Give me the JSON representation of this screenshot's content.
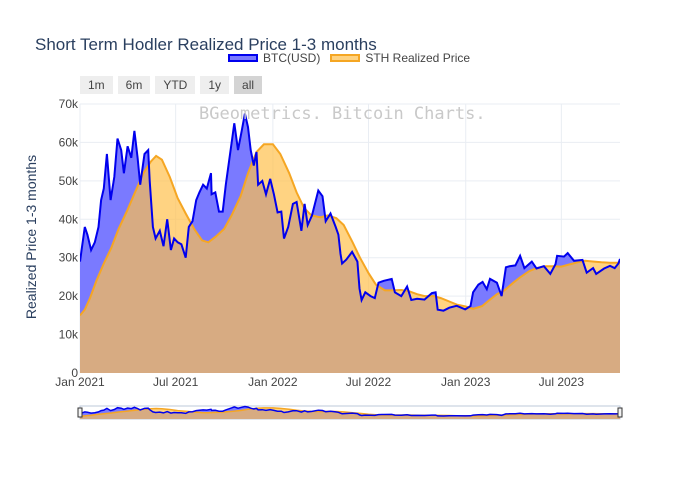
{
  "title": "Short Term Hodler Realized Price 1-3 months",
  "watermark": "BGeometrics. Bitcoin Charts.",
  "legend": [
    {
      "label": "BTC(USD)",
      "color": "#0000ee",
      "fill": "#7a7aff"
    },
    {
      "label": "STH Realized Price",
      "color": "#f5a623",
      "fill": "#ffd27f"
    }
  ],
  "range_buttons": [
    {
      "label": "1m",
      "active": false
    },
    {
      "label": "6m",
      "active": false
    },
    {
      "label": "YTD",
      "active": false
    },
    {
      "label": "1y",
      "active": false
    },
    {
      "label": "all",
      "active": true
    }
  ],
  "chart_data": {
    "type": "area",
    "title": "Short Term Hodler Realized Price 1-3 months",
    "ylabel": "Realized Price 1-3 months",
    "xlabel": "",
    "x_range": [
      "2021-01-01",
      "2023-10-20"
    ],
    "ylim": [
      0,
      70000
    ],
    "y_ticks": [
      0,
      10000,
      20000,
      30000,
      40000,
      50000,
      60000,
      70000
    ],
    "y_tick_labels": [
      "0",
      "10k",
      "20k",
      "30k",
      "40k",
      "50k",
      "60k",
      "70k"
    ],
    "x_ticks": [
      "2021-01-01",
      "2021-07-01",
      "2022-01-01",
      "2022-07-01",
      "2023-01-01",
      "2023-07-01"
    ],
    "x_tick_labels": [
      "Jan 2021",
      "Jul 2021",
      "Jan 2022",
      "Jul 2022",
      "Jan 2023",
      "Jul 2023"
    ],
    "grid": true,
    "legend_position": "top-center",
    "range_slider": true,
    "series": [
      {
        "name": "BTC(USD)",
        "color": "#0000ee",
        "points": [
          [
            "2021-01-01",
            29000
          ],
          [
            "2021-01-05",
            33000
          ],
          [
            "2021-01-10",
            38000
          ],
          [
            "2021-01-15",
            36000
          ],
          [
            "2021-01-22",
            32000
          ],
          [
            "2021-01-29",
            34000
          ],
          [
            "2021-02-05",
            38000
          ],
          [
            "2021-02-10",
            45000
          ],
          [
            "2021-02-15",
            48000
          ],
          [
            "2021-02-21",
            57000
          ],
          [
            "2021-02-28",
            45000
          ],
          [
            "2021-03-07",
            51000
          ],
          [
            "2021-03-13",
            61000
          ],
          [
            "2021-03-20",
            58000
          ],
          [
            "2021-03-25",
            52000
          ],
          [
            "2021-04-01",
            59000
          ],
          [
            "2021-04-08",
            56000
          ],
          [
            "2021-04-14",
            63000
          ],
          [
            "2021-04-20",
            56000
          ],
          [
            "2021-04-25",
            49000
          ],
          [
            "2021-05-03",
            57000
          ],
          [
            "2021-05-10",
            58000
          ],
          [
            "2021-05-13",
            50000
          ],
          [
            "2021-05-19",
            38000
          ],
          [
            "2021-05-24",
            35000
          ],
          [
            "2021-06-01",
            37000
          ],
          [
            "2021-06-08",
            33000
          ],
          [
            "2021-06-15",
            40000
          ],
          [
            "2021-06-22",
            32000
          ],
          [
            "2021-06-28",
            35000
          ],
          [
            "2021-07-05",
            34000
          ],
          [
            "2021-07-12",
            33500
          ],
          [
            "2021-07-20",
            30000
          ],
          [
            "2021-07-26",
            38000
          ],
          [
            "2021-08-02",
            39500
          ],
          [
            "2021-08-09",
            45000
          ],
          [
            "2021-08-15",
            47000
          ],
          [
            "2021-08-22",
            49000
          ],
          [
            "2021-08-29",
            48000
          ],
          [
            "2021-09-06",
            52000
          ],
          [
            "2021-09-07",
            46500
          ],
          [
            "2021-09-14",
            47000
          ],
          [
            "2021-09-21",
            42000
          ],
          [
            "2021-09-28",
            42000
          ],
          [
            "2021-10-04",
            49000
          ],
          [
            "2021-10-10",
            55000
          ],
          [
            "2021-10-16",
            61000
          ],
          [
            "2021-10-20",
            65000
          ],
          [
            "2021-10-27",
            58000
          ],
          [
            "2021-11-03",
            63000
          ],
          [
            "2021-11-09",
            67500
          ],
          [
            "2021-11-15",
            64000
          ],
          [
            "2021-11-20",
            58000
          ],
          [
            "2021-11-26",
            54000
          ],
          [
            "2021-12-01",
            57500
          ],
          [
            "2021-12-04",
            49000
          ],
          [
            "2021-12-12",
            50000
          ],
          [
            "2021-12-19",
            46500
          ],
          [
            "2021-12-27",
            50500
          ],
          [
            "2022-01-03",
            46500
          ],
          [
            "2022-01-10",
            41800
          ],
          [
            "2022-01-17",
            42000
          ],
          [
            "2022-01-22",
            35000
          ],
          [
            "2022-01-30",
            38000
          ],
          [
            "2022-02-08",
            44000
          ],
          [
            "2022-02-15",
            44500
          ],
          [
            "2022-02-24",
            37000
          ],
          [
            "2022-03-02",
            44000
          ],
          [
            "2022-03-08",
            38500
          ],
          [
            "2022-03-16",
            41000
          ],
          [
            "2022-03-28",
            47500
          ],
          [
            "2022-04-05",
            46000
          ],
          [
            "2022-04-11",
            39500
          ],
          [
            "2022-04-20",
            41500
          ],
          [
            "2022-04-30",
            38000
          ],
          [
            "2022-05-05",
            36000
          ],
          [
            "2022-05-09",
            31000
          ],
          [
            "2022-05-12",
            28500
          ],
          [
            "2022-05-20",
            29500
          ],
          [
            "2022-05-31",
            31500
          ],
          [
            "2022-06-10",
            29000
          ],
          [
            "2022-06-14",
            22000
          ],
          [
            "2022-06-18",
            19000
          ],
          [
            "2022-06-25",
            21000
          ],
          [
            "2022-07-05",
            20000
          ],
          [
            "2022-07-13",
            19500
          ],
          [
            "2022-07-20",
            23500
          ],
          [
            "2022-07-30",
            24000
          ],
          [
            "2022-08-14",
            24500
          ],
          [
            "2022-08-20",
            21000
          ],
          [
            "2022-09-01",
            20000
          ],
          [
            "2022-09-12",
            22500
          ],
          [
            "2022-09-20",
            19000
          ],
          [
            "2022-10-01",
            19300
          ],
          [
            "2022-10-15",
            19100
          ],
          [
            "2022-10-29",
            20800
          ],
          [
            "2022-11-05",
            21000
          ],
          [
            "2022-11-09",
            16500
          ],
          [
            "2022-11-20",
            16200
          ],
          [
            "2022-12-01",
            17000
          ],
          [
            "2022-12-15",
            17500
          ],
          [
            "2022-12-31",
            16550
          ],
          [
            "2023-01-10",
            17400
          ],
          [
            "2023-01-15",
            21000
          ],
          [
            "2023-01-25",
            23000
          ],
          [
            "2023-02-02",
            23700
          ],
          [
            "2023-02-10",
            21800
          ],
          [
            "2023-02-16",
            24500
          ],
          [
            "2023-03-01",
            23500
          ],
          [
            "2023-03-10",
            20000
          ],
          [
            "2023-03-18",
            27500
          ],
          [
            "2023-03-25",
            27800
          ],
          [
            "2023-04-05",
            28000
          ],
          [
            "2023-04-14",
            30500
          ],
          [
            "2023-04-22",
            27300
          ],
          [
            "2023-05-06",
            29000
          ],
          [
            "2023-05-15",
            27200
          ],
          [
            "2023-05-29",
            27800
          ],
          [
            "2023-06-10",
            25800
          ],
          [
            "2023-06-20",
            28300
          ],
          [
            "2023-06-23",
            30500
          ],
          [
            "2023-07-06",
            30300
          ],
          [
            "2023-07-13",
            31200
          ],
          [
            "2023-07-25",
            29200
          ],
          [
            "2023-08-10",
            29400
          ],
          [
            "2023-08-18",
            26100
          ],
          [
            "2023-08-30",
            27300
          ],
          [
            "2023-09-05",
            25800
          ],
          [
            "2023-09-20",
            27200
          ],
          [
            "2023-10-01",
            27900
          ],
          [
            "2023-10-10",
            27300
          ],
          [
            "2023-10-17",
            28500
          ],
          [
            "2023-10-20",
            29700
          ]
        ]
      },
      {
        "name": "STH Realized Price",
        "color": "#f5a623",
        "points": [
          [
            "2021-01-01",
            15000
          ],
          [
            "2021-01-10",
            16500
          ],
          [
            "2021-01-20",
            19500
          ],
          [
            "2021-02-01",
            24000
          ],
          [
            "2021-02-15",
            28500
          ],
          [
            "2021-03-01",
            32500
          ],
          [
            "2021-03-15",
            37500
          ],
          [
            "2021-04-01",
            42500
          ],
          [
            "2021-04-15",
            47000
          ],
          [
            "2021-05-01",
            52000
          ],
          [
            "2021-05-15",
            55000
          ],
          [
            "2021-05-25",
            56500
          ],
          [
            "2021-06-05",
            55500
          ],
          [
            "2021-06-20",
            51000
          ],
          [
            "2021-07-05",
            45500
          ],
          [
            "2021-07-20",
            41500
          ],
          [
            "2021-08-05",
            37500
          ],
          [
            "2021-08-20",
            34500
          ],
          [
            "2021-09-01",
            34000
          ],
          [
            "2021-09-15",
            35500
          ],
          [
            "2021-10-01",
            37500
          ],
          [
            "2021-10-15",
            41000
          ],
          [
            "2021-11-01",
            46000
          ],
          [
            "2021-11-15",
            52000
          ],
          [
            "2021-12-01",
            57500
          ],
          [
            "2021-12-15",
            59500
          ],
          [
            "2022-01-01",
            59500
          ],
          [
            "2022-01-15",
            57000
          ],
          [
            "2022-02-01",
            52000
          ],
          [
            "2022-02-15",
            47000
          ],
          [
            "2022-03-01",
            43000
          ],
          [
            "2022-03-15",
            41000
          ],
          [
            "2022-04-01",
            40500
          ],
          [
            "2022-04-15",
            41000
          ],
          [
            "2022-05-01",
            40300
          ],
          [
            "2022-05-15",
            38500
          ],
          [
            "2022-06-01",
            34000
          ],
          [
            "2022-06-15",
            30000
          ],
          [
            "2022-07-01",
            26000
          ],
          [
            "2022-07-15",
            23000
          ],
          [
            "2022-08-01",
            21500
          ],
          [
            "2022-08-15",
            21500
          ],
          [
            "2022-09-01",
            21600
          ],
          [
            "2022-09-15",
            21300
          ],
          [
            "2022-10-01",
            20500
          ],
          [
            "2022-10-15",
            20000
          ],
          [
            "2022-11-01",
            20000
          ],
          [
            "2022-11-15",
            19500
          ],
          [
            "2022-12-01",
            18600
          ],
          [
            "2022-12-15",
            17800
          ],
          [
            "2023-01-01",
            17300
          ],
          [
            "2023-01-15",
            16700
          ],
          [
            "2023-02-01",
            17400
          ],
          [
            "2023-02-15",
            19000
          ],
          [
            "2023-03-01",
            20500
          ],
          [
            "2023-03-15",
            21500
          ],
          [
            "2023-04-01",
            23500
          ],
          [
            "2023-04-15",
            25000
          ],
          [
            "2023-05-01",
            26500
          ],
          [
            "2023-05-15",
            27300
          ],
          [
            "2023-06-01",
            27800
          ],
          [
            "2023-06-15",
            27800
          ],
          [
            "2023-07-01",
            27700
          ],
          [
            "2023-07-15",
            28200
          ],
          [
            "2023-08-01",
            28800
          ],
          [
            "2023-08-15",
            29200
          ],
          [
            "2023-09-01",
            29000
          ],
          [
            "2023-09-15",
            28800
          ],
          [
            "2023-10-01",
            28700
          ],
          [
            "2023-10-20",
            28700
          ]
        ]
      }
    ]
  }
}
